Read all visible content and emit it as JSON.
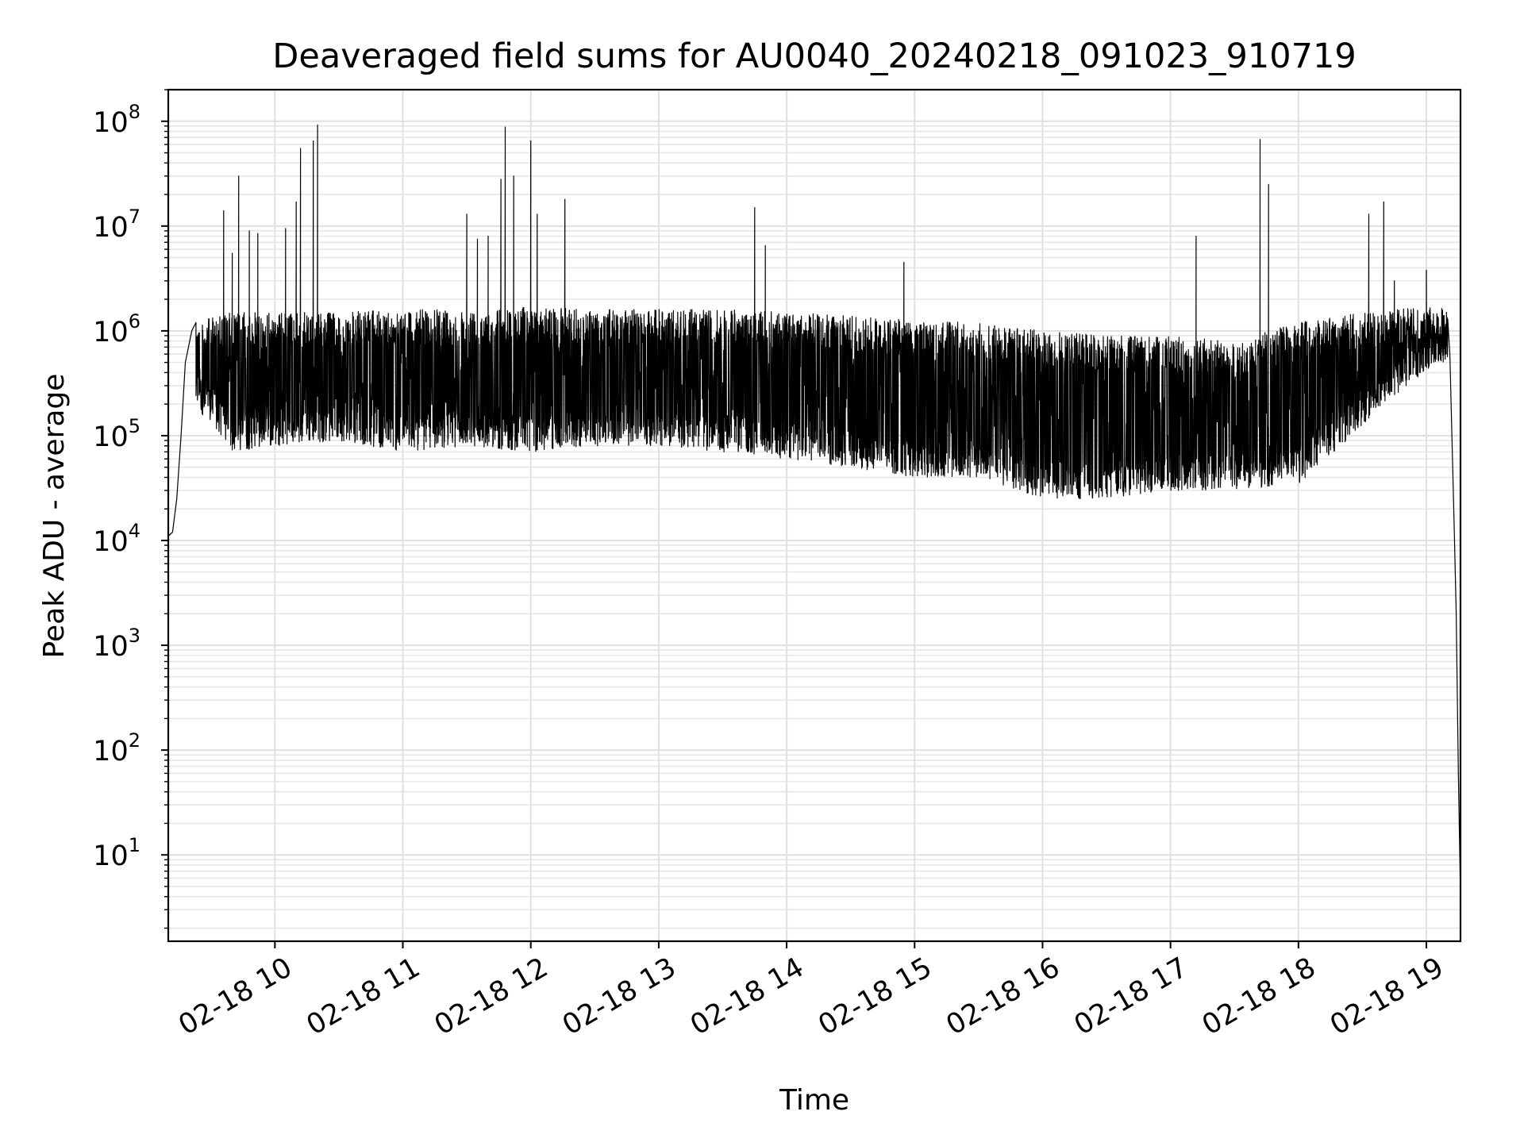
{
  "chart_data": {
    "type": "line",
    "title": "Deaveraged field sums for AU0040_20240218_091023_910719",
    "xlabel": "Time",
    "ylabel": "Peak ADU - average",
    "x_axis": {
      "kind": "time",
      "range": [
        "2024-02-18T09:10:00",
        "2024-02-18T19:16:00"
      ],
      "ticks": [
        "02-18 10",
        "02-18 11",
        "02-18 12",
        "02-18 13",
        "02-18 14",
        "02-18 15",
        "02-18 16",
        "02-18 17",
        "02-18 18",
        "02-18 19"
      ],
      "tick_times": [
        "2024-02-18T10:00:00",
        "2024-02-18T11:00:00",
        "2024-02-18T12:00:00",
        "2024-02-18T13:00:00",
        "2024-02-18T14:00:00",
        "2024-02-18T15:00:00",
        "2024-02-18T16:00:00",
        "2024-02-18T17:00:00",
        "2024-02-18T18:00:00",
        "2024-02-18T19:00:00"
      ]
    },
    "y_axis": {
      "scale": "log",
      "range": [
        1.5,
        200000000.0
      ],
      "ticks": [
        {
          "base": "10",
          "exp": "1",
          "value": 10
        },
        {
          "base": "10",
          "exp": "2",
          "value": 100
        },
        {
          "base": "10",
          "exp": "3",
          "value": 1000
        },
        {
          "base": "10",
          "exp": "4",
          "value": 10000
        },
        {
          "base": "10",
          "exp": "5",
          "value": 100000
        },
        {
          "base": "10",
          "exp": "6",
          "value": 1000000
        },
        {
          "base": "10",
          "exp": "7",
          "value": 10000000
        },
        {
          "base": "10",
          "exp": "8",
          "value": 100000000
        }
      ]
    },
    "grid": true,
    "grid_minor": true,
    "legend": "none",
    "series": [
      {
        "color": "#000000",
        "band_min": [
          [
            "09:10",
            10000
          ],
          [
            "09:22",
            200000
          ],
          [
            "09:40",
            70000
          ],
          [
            "10:00",
            80000
          ],
          [
            "10:30",
            90000
          ],
          [
            "11:00",
            70000
          ],
          [
            "11:30",
            80000
          ],
          [
            "12:00",
            70000
          ],
          [
            "12:30",
            80000
          ],
          [
            "13:00",
            80000
          ],
          [
            "13:30",
            70000
          ],
          [
            "14:00",
            60000
          ],
          [
            "14:30",
            50000
          ],
          [
            "15:00",
            40000
          ],
          [
            "15:30",
            40000
          ],
          [
            "16:00",
            25000
          ],
          [
            "16:30",
            25000
          ],
          [
            "17:00",
            30000
          ],
          [
            "17:30",
            30000
          ],
          [
            "18:00",
            35000
          ],
          [
            "18:20",
            80000
          ],
          [
            "18:40",
            200000
          ],
          [
            "19:05",
            500000
          ],
          [
            "19:10",
            500000
          ]
        ],
        "band_max": [
          [
            "09:10",
            12000
          ],
          [
            "09:22",
            1200000
          ],
          [
            "09:40",
            1500000
          ],
          [
            "10:00",
            1500000
          ],
          [
            "10:30",
            1500000
          ],
          [
            "11:00",
            1600000
          ],
          [
            "11:30",
            1600000
          ],
          [
            "12:00",
            1700000
          ],
          [
            "12:30",
            1600000
          ],
          [
            "13:00",
            1600000
          ],
          [
            "13:30",
            1600000
          ],
          [
            "14:00",
            1500000
          ],
          [
            "14:30",
            1400000
          ],
          [
            "15:00",
            1300000
          ],
          [
            "15:30",
            1200000
          ],
          [
            "16:00",
            1000000
          ],
          [
            "16:30",
            900000
          ],
          [
            "17:00",
            900000
          ],
          [
            "17:30",
            800000
          ],
          [
            "18:00",
            1200000
          ],
          [
            "18:20",
            1400000
          ],
          [
            "18:40",
            1600000
          ],
          [
            "19:05",
            1700000
          ],
          [
            "19:10",
            1700000
          ]
        ],
        "envelope_start": [
          [
            "09:10",
            11000
          ],
          [
            "09:12",
            12000
          ],
          [
            "09:14",
            25000
          ],
          [
            "09:16",
            100000
          ],
          [
            "09:18",
            500000
          ],
          [
            "09:21",
            1000000
          ],
          [
            "09:23",
            1200000
          ]
        ],
        "envelope_end": [
          [
            "19:10",
            1300000
          ],
          [
            "19:11",
            600000
          ],
          [
            "19:13",
            15000
          ],
          [
            "19:14",
            2000
          ],
          [
            "19:15",
            60
          ],
          [
            "19:16",
            4
          ]
        ],
        "spikes": [
          [
            "09:36",
            14000000
          ],
          [
            "09:40",
            5500000
          ],
          [
            "09:43",
            30000000
          ],
          [
            "09:48",
            9000000
          ],
          [
            "09:52",
            8500000
          ],
          [
            "10:05",
            9500000
          ],
          [
            "10:10",
            17000000
          ],
          [
            "10:12",
            55000000
          ],
          [
            "10:18",
            65000000
          ],
          [
            "10:20",
            92000000
          ],
          [
            "11:30",
            13000000
          ],
          [
            "11:35",
            7500000
          ],
          [
            "11:40",
            8000000
          ],
          [
            "11:46",
            28000000
          ],
          [
            "11:48",
            88000000
          ],
          [
            "11:52",
            30000000
          ],
          [
            "12:00",
            65000000
          ],
          [
            "12:03",
            13000000
          ],
          [
            "12:16",
            18000000
          ],
          [
            "13:45",
            15000000
          ],
          [
            "13:50",
            6500000
          ],
          [
            "14:55",
            4500000
          ],
          [
            "17:12",
            8000000
          ],
          [
            "17:42",
            67000000
          ],
          [
            "17:46",
            25000000
          ],
          [
            "18:33",
            13000000
          ],
          [
            "18:40",
            17000000
          ],
          [
            "18:45",
            3000000
          ],
          [
            "19:00",
            3800000
          ]
        ]
      }
    ]
  }
}
